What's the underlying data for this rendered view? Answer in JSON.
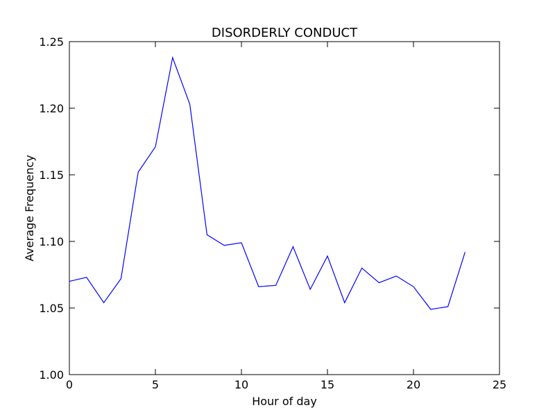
{
  "chart_data": {
    "type": "line",
    "title": "DISORDERLY CONDUCT",
    "xlabel": "Hour of day",
    "ylabel": "Average Frequency",
    "xlim": [
      0,
      25
    ],
    "ylim": [
      1.0,
      1.25
    ],
    "xticks": [
      0,
      5,
      10,
      15,
      20,
      25
    ],
    "xtick_labels": [
      "0",
      "5",
      "10",
      "15",
      "20",
      "25"
    ],
    "yticks": [
      1.0,
      1.05,
      1.1,
      1.15,
      1.2,
      1.25
    ],
    "ytick_labels": [
      "1.00",
      "1.05",
      "1.10",
      "1.15",
      "1.20",
      "1.25"
    ],
    "grid": false,
    "series": [
      {
        "color": "#0000ff",
        "x": [
          0,
          1,
          2,
          3,
          4,
          5,
          6,
          7,
          8,
          9,
          10,
          11,
          12,
          13,
          14,
          15,
          16,
          17,
          18,
          19,
          20,
          21,
          22,
          23
        ],
        "values": [
          1.07,
          1.073,
          1.054,
          1.072,
          1.152,
          1.171,
          1.238,
          1.203,
          1.105,
          1.097,
          1.099,
          1.066,
          1.067,
          1.096,
          1.064,
          1.089,
          1.054,
          1.08,
          1.069,
          1.074,
          1.066,
          1.049,
          1.051,
          1.092
        ]
      }
    ]
  }
}
